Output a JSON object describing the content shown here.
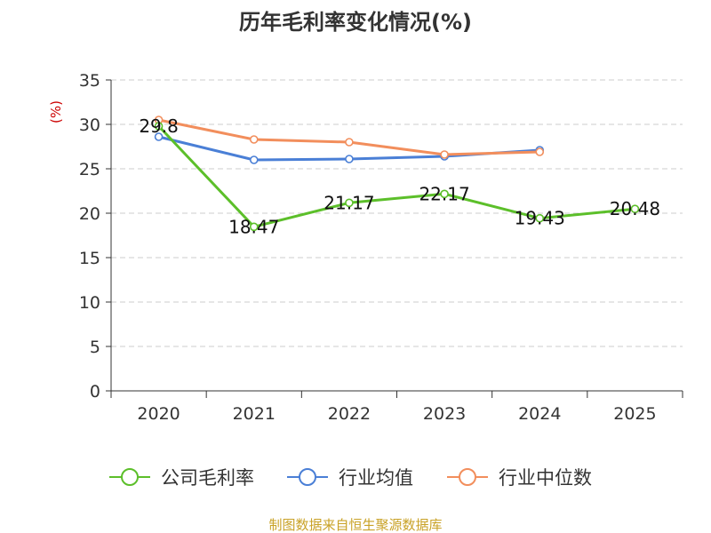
{
  "chart_data": {
    "type": "line",
    "title": "历年毛利率变化情况(%)",
    "ylabel": "(%)",
    "xlabel": "",
    "categories": [
      "2020",
      "2021",
      "2022",
      "2023",
      "2024",
      "2025"
    ],
    "ylim": [
      0,
      35
    ],
    "yticks": [
      0,
      5,
      10,
      15,
      20,
      25,
      30,
      35
    ],
    "grid": true,
    "legend_position": "bottom",
    "series": [
      {
        "name": "公司毛利率",
        "color": "#5cbf2a",
        "values": [
          29.8,
          18.47,
          21.17,
          22.17,
          19.43,
          20.48
        ],
        "labels": [
          "29.8",
          "18.47",
          "21.17",
          "22.17",
          "19.43",
          "20.48"
        ]
      },
      {
        "name": "行业均值",
        "color": "#4a7fd6",
        "values": [
          28.6,
          26.0,
          26.1,
          26.4,
          27.1,
          null
        ]
      },
      {
        "name": "行业中位数",
        "color": "#f28e5c",
        "values": [
          30.5,
          28.3,
          28.0,
          26.6,
          26.9,
          null
        ]
      }
    ]
  },
  "footer": "制图数据来自恒生聚源数据库"
}
